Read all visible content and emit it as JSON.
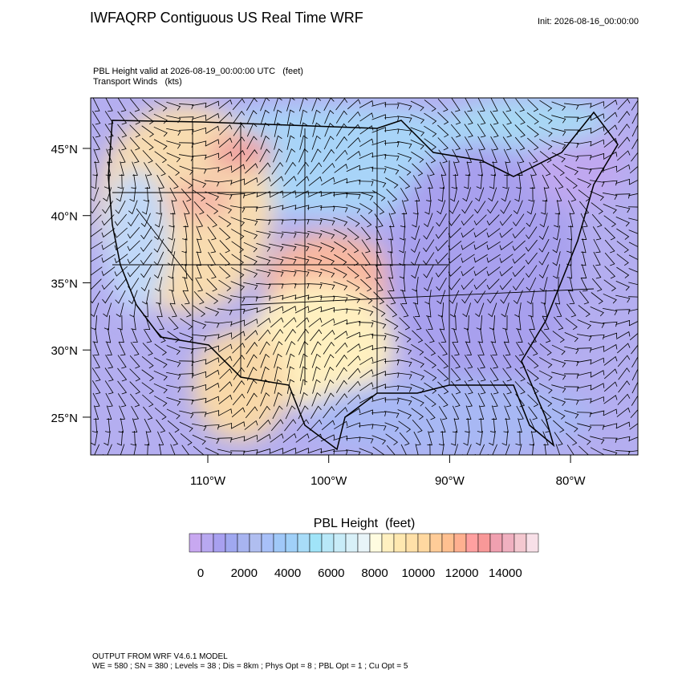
{
  "header": {
    "title": "IWFAQRP Contiguous US Real Time WRF",
    "init": "Init: 2026-08-16_00:00:00"
  },
  "plot": {
    "field_label": "PBL Height valid at 2026-08-19_00:00:00 UTC   (feet)",
    "wind_label": "Transport Winds   (kts)",
    "xlim": [
      -119.69,
      -74.43
    ],
    "ylim": [
      22.19,
      48.76
    ],
    "xticks": [
      {
        "value": -110,
        "label": "110°W"
      },
      {
        "value": -100,
        "label": "100°W"
      },
      {
        "value": -90,
        "label": "90°W"
      },
      {
        "value": -80,
        "label": "80°W"
      }
    ],
    "yticks": [
      {
        "value": 45,
        "label": "45°N"
      },
      {
        "value": 40,
        "label": "40°N"
      },
      {
        "value": 35,
        "label": "35°N"
      },
      {
        "value": 30,
        "label": "30°N"
      },
      {
        "value": 25,
        "label": "25°N"
      }
    ]
  },
  "colorbar": {
    "title": "PBL Height  (feet)",
    "lim": [
      -516,
      15516
    ],
    "ticks": [
      0,
      2000,
      4000,
      6000,
      8000,
      10000,
      12000,
      14000
    ],
    "colors": [
      "#c8a8f0",
      "#b8a8f0",
      "#a8a0f0",
      "#a0a8f0",
      "#a8b4f0",
      "#b0bef0",
      "#a8c0f8",
      "#a0c8f8",
      "#a0d0f8",
      "#a8dcf8",
      "#a0e4f8",
      "#b8e8f8",
      "#c8ecf8",
      "#d8f0f8",
      "#e8f4f8",
      "#fffce0",
      "#fff0c0",
      "#ffe8b0",
      "#ffe0a8",
      "#ffd8a0",
      "#ffcc98",
      "#ffc090",
      "#ffb090",
      "#ffa0a0",
      "#f89898",
      "#f0a0b0",
      "#f0b0c0",
      "#f4c8d0",
      "#f8e0e8"
    ]
  },
  "footer": {
    "line1": "OUTPUT FROM WRF V4.6.1 MODEL",
    "line2": "WE = 580 ; SN = 380 ; Levels = 38 ; Dis = 8km ; Phys Opt = 8 ; PBL Opt = 1 ; Cu Opt = 5"
  }
}
